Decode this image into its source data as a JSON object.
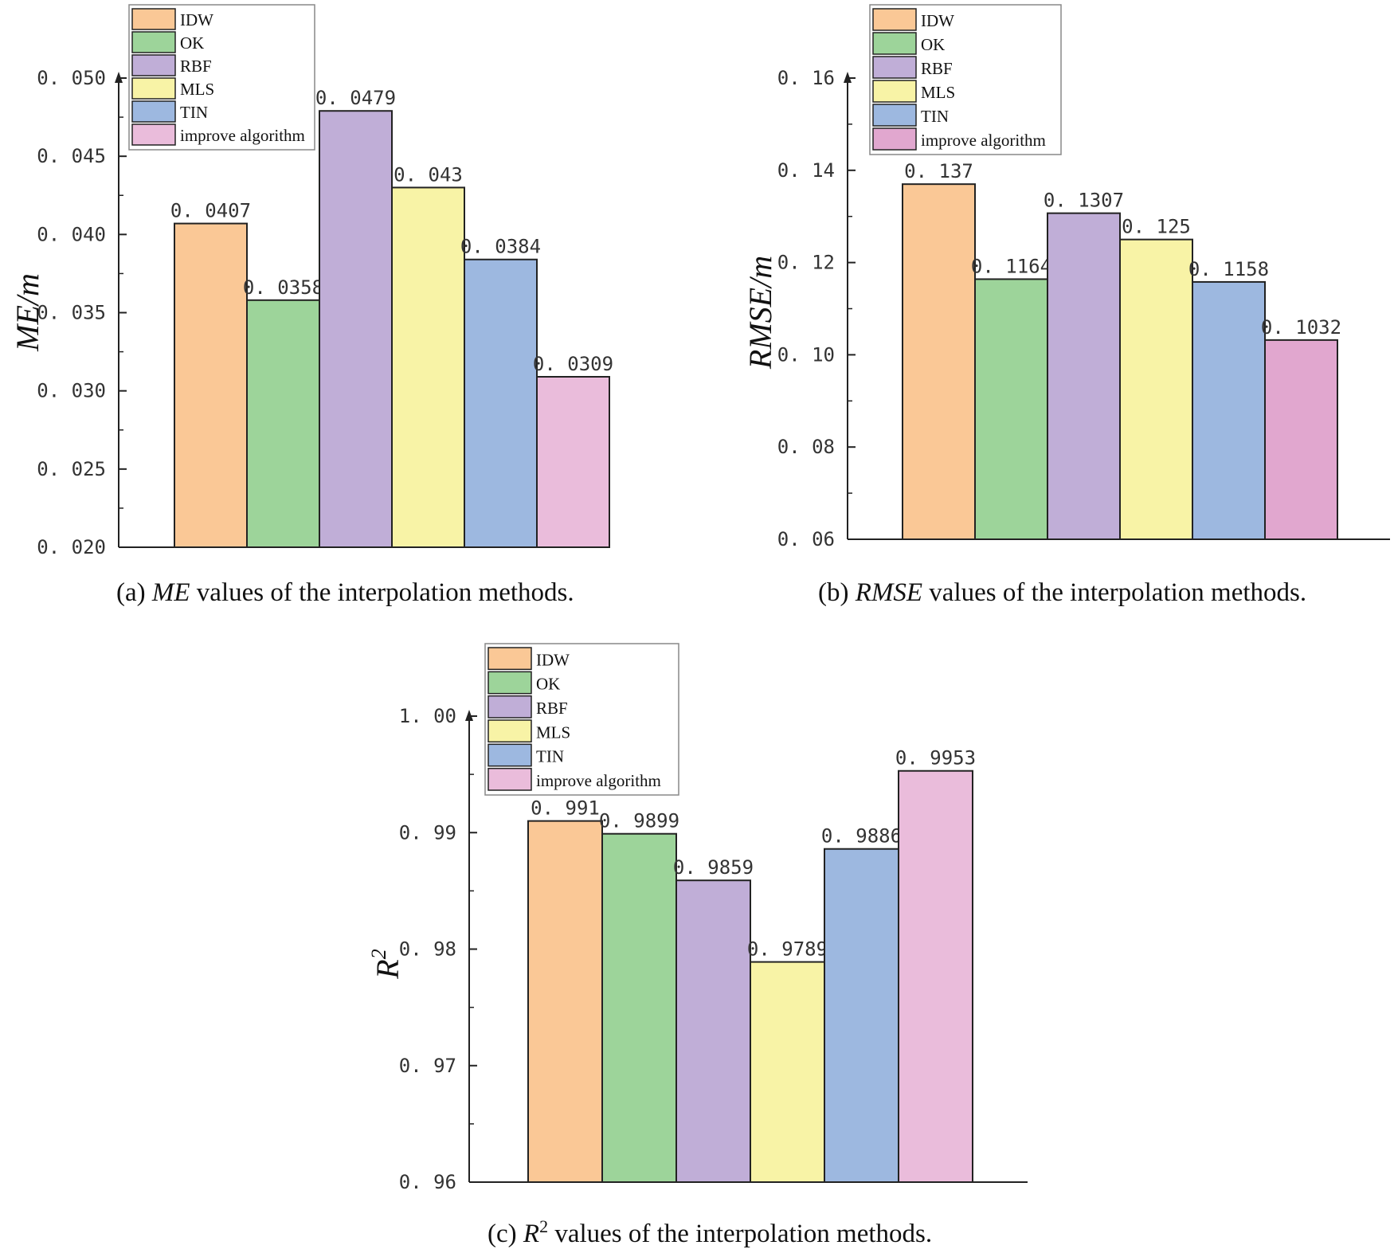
{
  "categories": [
    "IDW",
    "OK",
    "RBF",
    "MLS",
    "TIN",
    "improve algorithm"
  ],
  "colors": [
    "#FAC896",
    "#9DD49A",
    "#C0AED7",
    "#F8F3A6",
    "#9DB8E0",
    "#EABCDB"
  ],
  "chart_data": [
    {
      "type": "bar",
      "panel": "a",
      "ylabel": "ME/m",
      "ylim": [
        0.02,
        0.05
      ],
      "yticks": [
        "0. 020",
        "0. 025",
        "0. 030",
        "0. 035",
        "0. 040",
        "0. 045",
        "0. 050"
      ],
      "ytick_values": [
        0.02,
        0.025,
        0.03,
        0.035,
        0.04,
        0.045,
        0.05
      ],
      "categories": [
        "IDW",
        "OK",
        "RBF",
        "MLS",
        "TIN",
        "improve algorithm"
      ],
      "values": [
        0.0407,
        0.0358,
        0.0479,
        0.043,
        0.0384,
        0.0309
      ],
      "value_labels": [
        "0. 0407",
        "0. 0358",
        "0. 0479",
        "0. 043",
        "0. 0384",
        "0. 0309"
      ],
      "legend": "top-left"
    },
    {
      "type": "bar",
      "panel": "b",
      "ylabel": "RMSE/m",
      "ylim": [
        0.06,
        0.16
      ],
      "yticks": [
        "0. 06",
        "0. 08",
        "0. 10",
        "0. 12",
        "0. 14",
        "0. 16"
      ],
      "ytick_values": [
        0.06,
        0.08,
        0.1,
        0.12,
        0.14,
        0.16
      ],
      "categories": [
        "IDW",
        "OK",
        "RBF",
        "MLS",
        "TIN",
        "improve algorithm"
      ],
      "values": [
        0.137,
        0.1164,
        0.1307,
        0.125,
        0.1158,
        0.1032
      ],
      "value_labels": [
        "0. 137",
        "0. 1164",
        "0. 1307",
        "0. 125",
        "0. 1158",
        "0. 1032"
      ],
      "legend": "top-left",
      "last_color": "#E1A7CF"
    },
    {
      "type": "bar",
      "panel": "c",
      "ylabel": "R",
      "ylabel_sup": "2",
      "ylim": [
        0.96,
        1.0
      ],
      "yticks": [
        "0. 96",
        "0. 97",
        "0. 98",
        "0. 99",
        "1. 00"
      ],
      "ytick_values": [
        0.96,
        0.97,
        0.98,
        0.99,
        1.0
      ],
      "categories": [
        "IDW",
        "OK",
        "RBF",
        "MLS",
        "TIN",
        "improve algorithm"
      ],
      "values": [
        0.991,
        0.9899,
        0.9859,
        0.9789,
        0.9886,
        0.9953
      ],
      "value_labels": [
        "0. 991",
        "0. 9899",
        "0. 9859",
        "0. 9789",
        "0. 9886",
        "0. 9953"
      ],
      "legend": "top-left"
    }
  ],
  "captions": {
    "a": {
      "pre": "(a) ",
      "em": "ME",
      "post": " values of the interpolation methods."
    },
    "b": {
      "pre": "(b) ",
      "em": "RMSE",
      "post": "  values of the interpolation methods."
    },
    "c": {
      "pre": "(c) ",
      "em": "R",
      "sup": "2",
      "post": " values of the interpolation methods."
    }
  }
}
